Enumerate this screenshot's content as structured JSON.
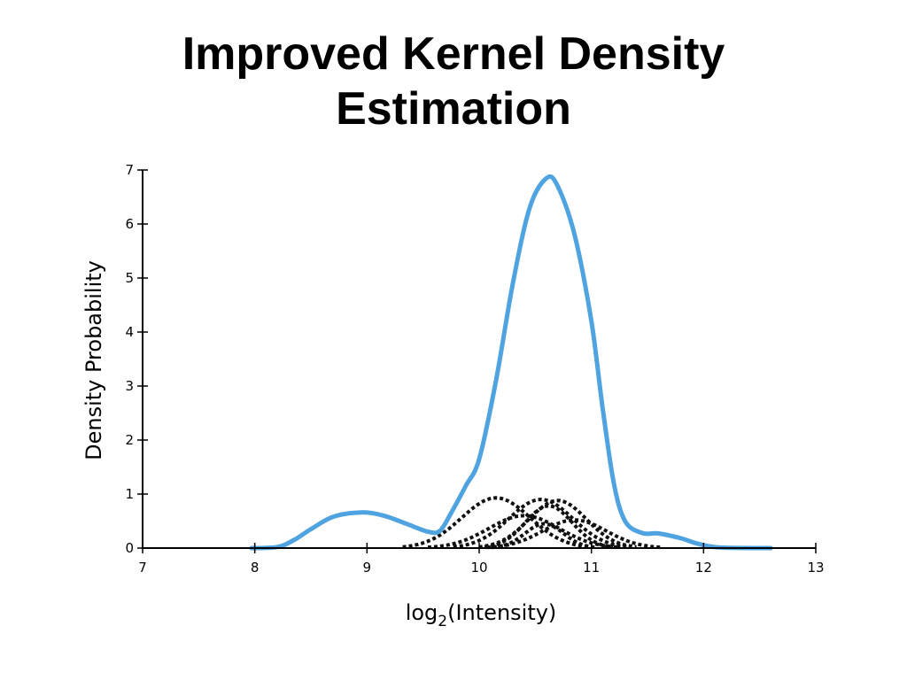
{
  "title": {
    "line1": "Improved Kernel Density",
    "line2": "Estimation"
  },
  "chart_data": {
    "type": "line",
    "title": "Improved Kernel Density Estimation",
    "xlabel_base": "log",
    "xlabel_subscript": "2",
    "xlabel_rest": "(Intensity)",
    "ylabel": "Density Probability",
    "xlim": [
      7,
      13
    ],
    "ylim": [
      0,
      7
    ],
    "x_ticks": [
      7,
      8,
      9,
      10,
      11,
      12,
      13
    ],
    "y_ticks": [
      0,
      1,
      2,
      3,
      4,
      5,
      6,
      7
    ],
    "grid": false,
    "series": [
      {
        "style": "solid",
        "color": "#4FA3E0",
        "points": [
          [
            7.97,
            0
          ],
          [
            8.2,
            0.02
          ],
          [
            8.35,
            0.15
          ],
          [
            8.5,
            0.35
          ],
          [
            8.7,
            0.58
          ],
          [
            8.95,
            0.66
          ],
          [
            9.15,
            0.6
          ],
          [
            9.35,
            0.45
          ],
          [
            9.55,
            0.3
          ],
          [
            9.65,
            0.32
          ],
          [
            9.75,
            0.65
          ],
          [
            9.88,
            1.15
          ],
          [
            10.0,
            1.65
          ],
          [
            10.15,
            3.1
          ],
          [
            10.3,
            4.9
          ],
          [
            10.45,
            6.3
          ],
          [
            10.6,
            6.85
          ],
          [
            10.7,
            6.7
          ],
          [
            10.85,
            5.8
          ],
          [
            11.0,
            4.2
          ],
          [
            11.1,
            2.6
          ],
          [
            11.2,
            1.2
          ],
          [
            11.3,
            0.5
          ],
          [
            11.45,
            0.28
          ],
          [
            11.6,
            0.27
          ],
          [
            11.8,
            0.18
          ],
          [
            11.95,
            0.08
          ],
          [
            12.15,
            0.01
          ],
          [
            12.6,
            0
          ]
        ]
      }
    ],
    "kernels": [
      {
        "center": 10.15,
        "height": 0.93,
        "width": 0.32
      },
      {
        "center": 10.55,
        "height": 0.9,
        "width": 0.3
      },
      {
        "center": 10.7,
        "height": 0.88,
        "width": 0.27
      },
      {
        "center": 10.62,
        "height": 0.78,
        "width": 0.22
      },
      {
        "center": 10.4,
        "height": 0.6,
        "width": 0.33
      },
      {
        "center": 10.85,
        "height": 0.52,
        "width": 0.3
      },
      {
        "center": 10.58,
        "height": 0.45,
        "width": 0.18
      }
    ],
    "kernel_color": "#111111"
  }
}
